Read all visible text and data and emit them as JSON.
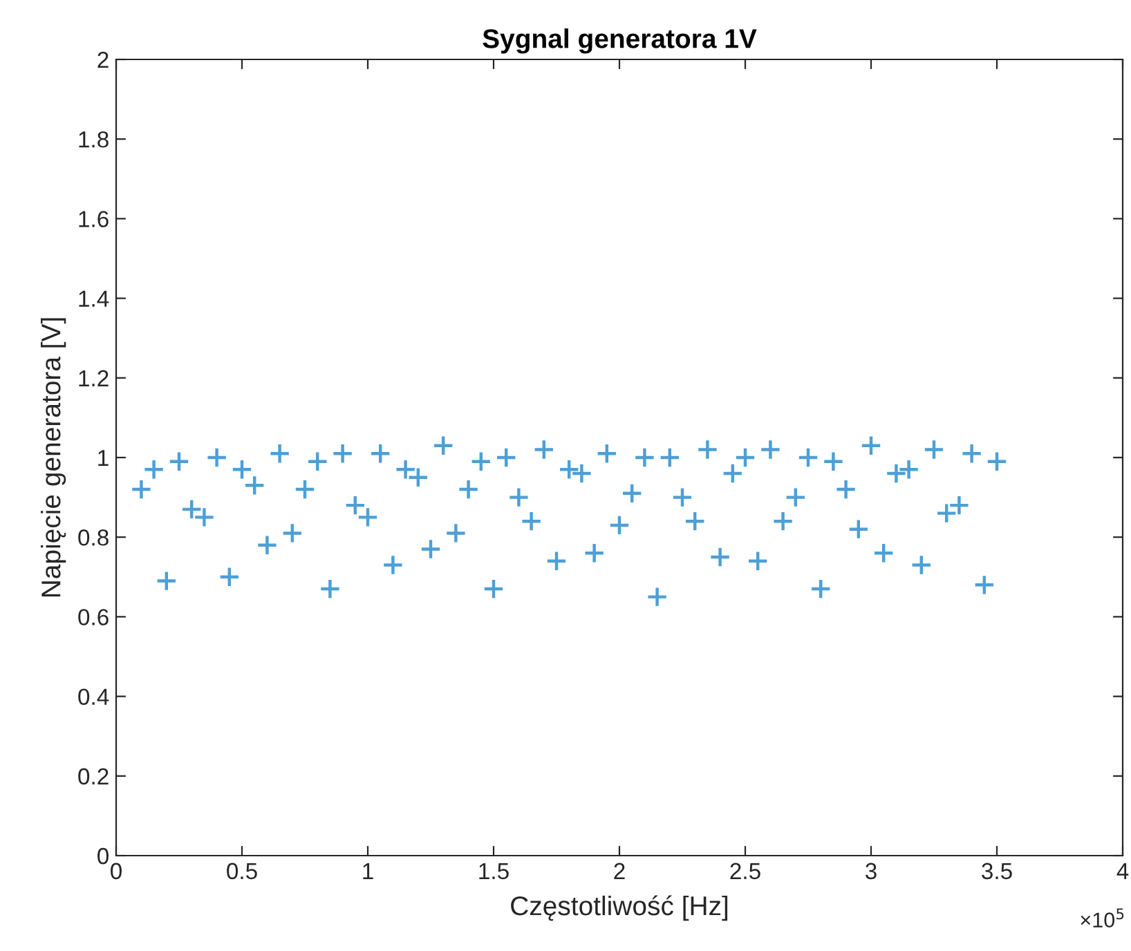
{
  "chart_data": {
    "type": "scatter",
    "title": "Sygnal generatora 1V",
    "xlabel": "Częstotliwość [Hz]",
    "ylabel": "Napięcie generatora [V]",
    "annotations": [
      "×10$^{5}$"
    ],
    "x": [
      0.1,
      0.15,
      0.2,
      0.25,
      0.3,
      0.35,
      0.4,
      0.45,
      0.5,
      0.55,
      0.6,
      0.65,
      0.7,
      0.75,
      0.8,
      0.85,
      0.9,
      0.95,
      1.0,
      1.05,
      1.1,
      1.15,
      1.2,
      1.25,
      1.3,
      1.35,
      1.4,
      1.45,
      1.5,
      1.55,
      1.6,
      1.65,
      1.7,
      1.75,
      1.8,
      1.85,
      1.9,
      1.95,
      2.0,
      2.05,
      2.1,
      2.15,
      2.2,
      2.25,
      2.3,
      2.35,
      2.4,
      2.45,
      2.5,
      2.55,
      2.6,
      2.65,
      2.7,
      2.75,
      2.8,
      2.85,
      2.9,
      2.95,
      3.0,
      3.05,
      3.1,
      3.15,
      3.2,
      3.25,
      3.3,
      3.35,
      3.4,
      3.45,
      3.5
    ],
    "series": [
      {
        "color": "#4d9fd6",
        "values": [
          0.92,
          0.97,
          0.69,
          0.99,
          0.87,
          0.85,
          1.0,
          0.7,
          0.97,
          0.93,
          0.78,
          1.01,
          0.81,
          0.92,
          0.99,
          0.67,
          1.01,
          0.88,
          0.85,
          1.01,
          0.73,
          0.97,
          0.95,
          0.77,
          1.03,
          0.81,
          0.92,
          0.99,
          0.67,
          1.0,
          0.9,
          0.84,
          1.02,
          0.74,
          0.97,
          0.96,
          0.76,
          1.01,
          0.83,
          0.91,
          1.0,
          0.65,
          1.0,
          0.9,
          0.84,
          1.02,
          0.75,
          0.96,
          1.0,
          0.74,
          1.02,
          0.84,
          0.9,
          1.0,
          0.67,
          0.99,
          0.92,
          0.82,
          1.03,
          0.76,
          0.96,
          0.97,
          0.73,
          1.02,
          0.86,
          0.88,
          1.01,
          0.68,
          0.99
        ]
      }
    ],
    "marker": "cross",
    "xlim": [
      0,
      4
    ],
    "xticks": [
      0,
      0.5,
      1,
      1.5,
      2,
      2.5,
      3,
      3.5,
      4
    ],
    "ylim": [
      0,
      2
    ],
    "yticks": [
      0,
      0.2,
      0.4,
      0.6,
      0.8,
      1,
      1.2,
      1.4,
      1.6,
      1.8,
      2
    ],
    "grid": false
  }
}
